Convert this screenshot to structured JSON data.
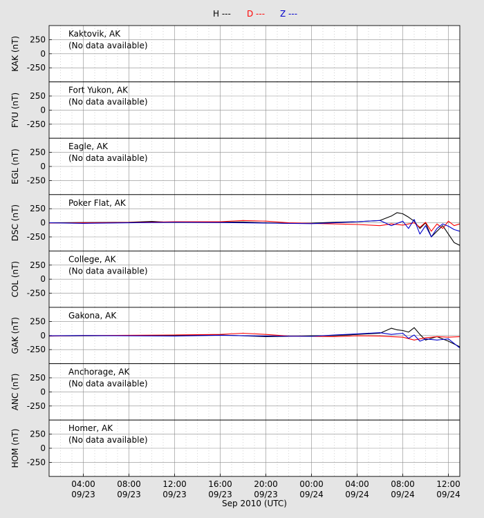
{
  "legend": [
    {
      "name": "H ---",
      "color": "#000000"
    },
    {
      "name": "D ---",
      "color": "#ff0000"
    },
    {
      "name": "Z ---",
      "color": "#0000cc"
    }
  ],
  "xlabel": "Sep 2010 (UTC)",
  "chart_data": {
    "type": "line",
    "x_axis": {
      "unit": "hours since 2010-09-23 00:00 UTC",
      "range": [
        1,
        37
      ],
      "ticks": [
        {
          "value": 4,
          "time": "04:00",
          "date": "09/23"
        },
        {
          "value": 8,
          "time": "08:00",
          "date": "09/23"
        },
        {
          "value": 12,
          "time": "12:00",
          "date": "09/23"
        },
        {
          "value": 16,
          "time": "16:00",
          "date": "09/23"
        },
        {
          "value": 20,
          "time": "20:00",
          "date": "09/23"
        },
        {
          "value": 24,
          "time": "00:00",
          "date": "09/24"
        },
        {
          "value": 28,
          "time": "04:00",
          "date": "09/24"
        },
        {
          "value": 32,
          "time": "08:00",
          "date": "09/24"
        },
        {
          "value": 36,
          "time": "12:00",
          "date": "09/24"
        }
      ]
    },
    "ylim": [
      -500,
      500
    ],
    "yticks": [
      250,
      0,
      -250
    ],
    "legend_position": "top-center",
    "grid": true,
    "panels": [
      {
        "ylabel": "KAK (nT)",
        "station": "Kaktovik, AK",
        "note": "(No data available)",
        "series": []
      },
      {
        "ylabel": "FYU (nT)",
        "station": "Fort Yukon, AK",
        "note": "(No data available)",
        "series": []
      },
      {
        "ylabel": "EGL (nT)",
        "station": "Eagle, AK",
        "note": "(No data available)",
        "series": []
      },
      {
        "ylabel": "DSC (nT)",
        "station": "Poker Flat, AK",
        "note": "",
        "series": [
          {
            "component": "H",
            "color": "#000000",
            "points": [
              [
                1,
                0
              ],
              [
                4,
                5
              ],
              [
                8,
                10
              ],
              [
                10,
                25
              ],
              [
                11,
                15
              ],
              [
                12,
                10
              ],
              [
                14,
                15
              ],
              [
                16,
                10
              ],
              [
                18,
                15
              ],
              [
                20,
                0
              ],
              [
                22,
                -10
              ],
              [
                24,
                -5
              ],
              [
                26,
                10
              ],
              [
                28,
                20
              ],
              [
                30,
                40
              ],
              [
                31,
                120
              ],
              [
                31.5,
                180
              ],
              [
                32,
                160
              ],
              [
                32.5,
                100
              ],
              [
                33,
                30
              ],
              [
                33.5,
                -100
              ],
              [
                34,
                0
              ],
              [
                34.5,
                -250
              ],
              [
                35,
                -150
              ],
              [
                35.5,
                -50
              ],
              [
                36,
                -200
              ],
              [
                36.5,
                -350
              ],
              [
                37,
                -400
              ]
            ]
          },
          {
            "component": "D",
            "color": "#ff0000",
            "points": [
              [
                1,
                -5
              ],
              [
                4,
                0
              ],
              [
                8,
                5
              ],
              [
                12,
                20
              ],
              [
                16,
                20
              ],
              [
                18,
                40
              ],
              [
                20,
                30
              ],
              [
                22,
                0
              ],
              [
                24,
                -10
              ],
              [
                26,
                -20
              ],
              [
                28,
                -30
              ],
              [
                30,
                -50
              ],
              [
                31,
                -20
              ],
              [
                32,
                -40
              ],
              [
                33,
                0
              ],
              [
                33.5,
                -80
              ],
              [
                34,
                10
              ],
              [
                34.5,
                -150
              ],
              [
                35,
                -20
              ],
              [
                35.5,
                -100
              ],
              [
                36,
                30
              ],
              [
                36.5,
                -50
              ],
              [
                37,
                -20
              ]
            ]
          },
          {
            "component": "Z",
            "color": "#0000cc",
            "points": [
              [
                1,
                0
              ],
              [
                4,
                -10
              ],
              [
                8,
                0
              ],
              [
                12,
                10
              ],
              [
                16,
                5
              ],
              [
                20,
                -5
              ],
              [
                24,
                -15
              ],
              [
                26,
                0
              ],
              [
                28,
                20
              ],
              [
                30,
                40
              ],
              [
                31,
                -50
              ],
              [
                32,
                30
              ],
              [
                32.5,
                -100
              ],
              [
                33,
                60
              ],
              [
                33.5,
                -200
              ],
              [
                34,
                -50
              ],
              [
                34.5,
                -250
              ],
              [
                35,
                -100
              ],
              [
                35.5,
                -20
              ],
              [
                36,
                -60
              ],
              [
                36.5,
                -120
              ],
              [
                37,
                -150
              ]
            ]
          }
        ]
      },
      {
        "ylabel": "COL (nT)",
        "station": "College, AK",
        "note": "(No data available)",
        "series": []
      },
      {
        "ylabel": "GAK (nT)",
        "station": "Gakona, AK",
        "note": "",
        "series": [
          {
            "component": "H",
            "color": "#000000",
            "points": [
              [
                1,
                -10
              ],
              [
                4,
                -5
              ],
              [
                8,
                0
              ],
              [
                12,
                5
              ],
              [
                16,
                10
              ],
              [
                20,
                -20
              ],
              [
                22,
                -15
              ],
              [
                24,
                -5
              ],
              [
                26,
                0
              ],
              [
                28,
                20
              ],
              [
                30,
                40
              ],
              [
                31,
                130
              ],
              [
                31.5,
                100
              ],
              [
                32,
                90
              ],
              [
                32.5,
                60
              ],
              [
                33,
                140
              ],
              [
                33.5,
                20
              ],
              [
                34,
                -80
              ],
              [
                35,
                -20
              ],
              [
                36,
                -100
              ],
              [
                37,
                -200
              ]
            ]
          },
          {
            "component": "D",
            "color": "#ff0000",
            "points": [
              [
                1,
                -10
              ],
              [
                4,
                0
              ],
              [
                8,
                5
              ],
              [
                12,
                10
              ],
              [
                16,
                20
              ],
              [
                18,
                40
              ],
              [
                20,
                20
              ],
              [
                22,
                -10
              ],
              [
                24,
                -15
              ],
              [
                26,
                -20
              ],
              [
                28,
                -5
              ],
              [
                30,
                -10
              ],
              [
                31,
                -20
              ],
              [
                32,
                -30
              ],
              [
                33,
                -80
              ],
              [
                34,
                -40
              ],
              [
                35,
                -20
              ],
              [
                36,
                -30
              ],
              [
                37,
                -20
              ]
            ]
          },
          {
            "component": "Z",
            "color": "#0000cc",
            "points": [
              [
                1,
                -5
              ],
              [
                4,
                0
              ],
              [
                8,
                -5
              ],
              [
                12,
                -10
              ],
              [
                16,
                5
              ],
              [
                20,
                -10
              ],
              [
                24,
                -15
              ],
              [
                26,
                10
              ],
              [
                28,
                30
              ],
              [
                30,
                50
              ],
              [
                31,
                20
              ],
              [
                32,
                40
              ],
              [
                32.5,
                -50
              ],
              [
                33,
                10
              ],
              [
                33.5,
                -100
              ],
              [
                34,
                -60
              ],
              [
                35,
                -80
              ],
              [
                36,
                -60
              ],
              [
                37,
                -220
              ]
            ]
          }
        ]
      },
      {
        "ylabel": "ANC (nT)",
        "station": "Anchorage, AK",
        "note": "(No data available)",
        "series": []
      },
      {
        "ylabel": "HOM (nT)",
        "station": "Homer, AK",
        "note": "(No data available)",
        "series": []
      }
    ]
  }
}
